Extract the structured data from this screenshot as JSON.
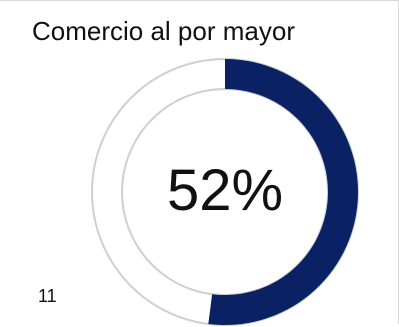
{
  "chart_data": {
    "type": "gauge",
    "title": "Comercio al por mayor",
    "value_percent": 52,
    "value_label": "52%",
    "footnote": "11",
    "colors": {
      "fill": "#0a2263",
      "track": "#e3e3e3",
      "track_border": "#cfcfcf"
    }
  }
}
